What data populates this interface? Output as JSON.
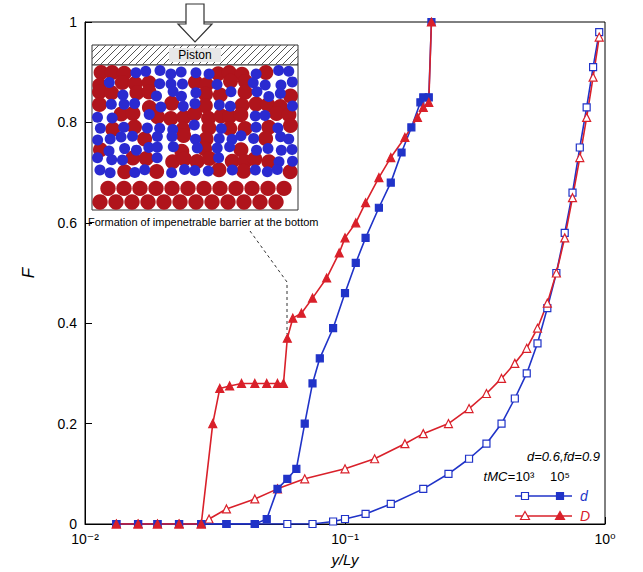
{
  "chart_data": {
    "type": "line",
    "x_label": "y/Ly",
    "y_label": "F",
    "log": "x",
    "xlim": [
      0.01,
      1
    ],
    "xticks": [
      {
        "value": 0.01,
        "label": "10⁻²"
      },
      {
        "value": 0.1,
        "label": "10⁻¹"
      },
      {
        "value": 1,
        "label": "10⁰"
      }
    ],
    "ylim": [
      0,
      1
    ],
    "yticks": [
      0,
      0.2,
      0.4,
      0.6,
      0.8,
      1
    ],
    "grid": false,
    "annotation": "d=0.6,fd=0.9",
    "legend": "lower right",
    "legend_title": "tMC=",
    "inset": {
      "piston_label": "Piston",
      "caption": "Formation of impenetrable barrier at the bottom"
    },
    "series": [
      {
        "name": "d",
        "t_MC": "10³",
        "color": "#2033c8",
        "marker": "open square",
        "x": [
          0.0132,
          0.016,
          0.019,
          0.023,
          0.028,
          0.035,
          0.045,
          0.06,
          0.075,
          0.09,
          0.1,
          0.12,
          0.15,
          0.2,
          0.25,
          0.3,
          0.35,
          0.4,
          0.45,
          0.5,
          0.55,
          0.6,
          0.65,
          0.7,
          0.75,
          0.8,
          0.85,
          0.9,
          0.95
        ],
        "values": [
          0,
          0,
          0,
          0,
          0,
          0,
          0,
          0,
          0,
          0.005,
          0.01,
          0.02,
          0.04,
          0.07,
          0.1,
          0.13,
          0.16,
          0.2,
          0.25,
          0.3,
          0.36,
          0.43,
          0.5,
          0.58,
          0.66,
          0.75,
          0.83,
          0.91,
          0.98
        ]
      },
      {
        "name": "d",
        "t_MC": "10⁵",
        "color": "#2033c8",
        "marker": "filled square",
        "x": [
          0.0132,
          0.016,
          0.019,
          0.023,
          0.028,
          0.035,
          0.045,
          0.05,
          0.055,
          0.06,
          0.065,
          0.07,
          0.075,
          0.08,
          0.09,
          0.1,
          0.11,
          0.12,
          0.135,
          0.15,
          0.165,
          0.18,
          0.195,
          0.2,
          0.21,
          0.215
        ],
        "values": [
          0,
          0,
          0,
          0,
          0,
          0,
          0,
          0.01,
          0.07,
          0.09,
          0.11,
          0.2,
          0.28,
          0.33,
          0.39,
          0.46,
          0.52,
          0.57,
          0.63,
          0.68,
          0.74,
          0.79,
          0.84,
          0.85,
          0.85,
          1.0
        ]
      },
      {
        "name": "D",
        "t_MC": "10³",
        "color": "#d9202a",
        "marker": "open triangle",
        "x": [
          0.0132,
          0.016,
          0.019,
          0.023,
          0.028,
          0.03,
          0.035,
          0.045,
          0.055,
          0.07,
          0.1,
          0.13,
          0.17,
          0.2,
          0.25,
          0.3,
          0.35,
          0.4,
          0.45,
          0.5,
          0.55,
          0.6,
          0.65,
          0.7,
          0.75,
          0.8,
          0.85,
          0.9,
          0.95
        ],
        "values": [
          0,
          0,
          0,
          0,
          0,
          0.01,
          0.03,
          0.05,
          0.07,
          0.09,
          0.11,
          0.13,
          0.16,
          0.18,
          0.2,
          0.23,
          0.26,
          0.29,
          0.32,
          0.35,
          0.39,
          0.44,
          0.5,
          0.57,
          0.65,
          0.73,
          0.81,
          0.89,
          0.97
        ]
      },
      {
        "name": "D",
        "t_MC": "10⁵",
        "color": "#d9202a",
        "marker": "filled triangle",
        "x": [
          0.0132,
          0.016,
          0.019,
          0.023,
          0.028,
          0.031,
          0.033,
          0.036,
          0.04,
          0.045,
          0.05,
          0.055,
          0.058,
          0.06,
          0.063,
          0.068,
          0.075,
          0.085,
          0.095,
          0.1,
          0.11,
          0.12,
          0.135,
          0.15,
          0.17,
          0.19,
          0.2,
          0.21,
          0.215
        ],
        "values": [
          0,
          0,
          0,
          0,
          0,
          0.2,
          0.27,
          0.275,
          0.28,
          0.28,
          0.28,
          0.28,
          0.28,
          0.37,
          0.41,
          0.42,
          0.45,
          0.49,
          0.54,
          0.57,
          0.6,
          0.64,
          0.69,
          0.73,
          0.77,
          0.81,
          0.83,
          0.84,
          1.0
        ]
      }
    ]
  }
}
